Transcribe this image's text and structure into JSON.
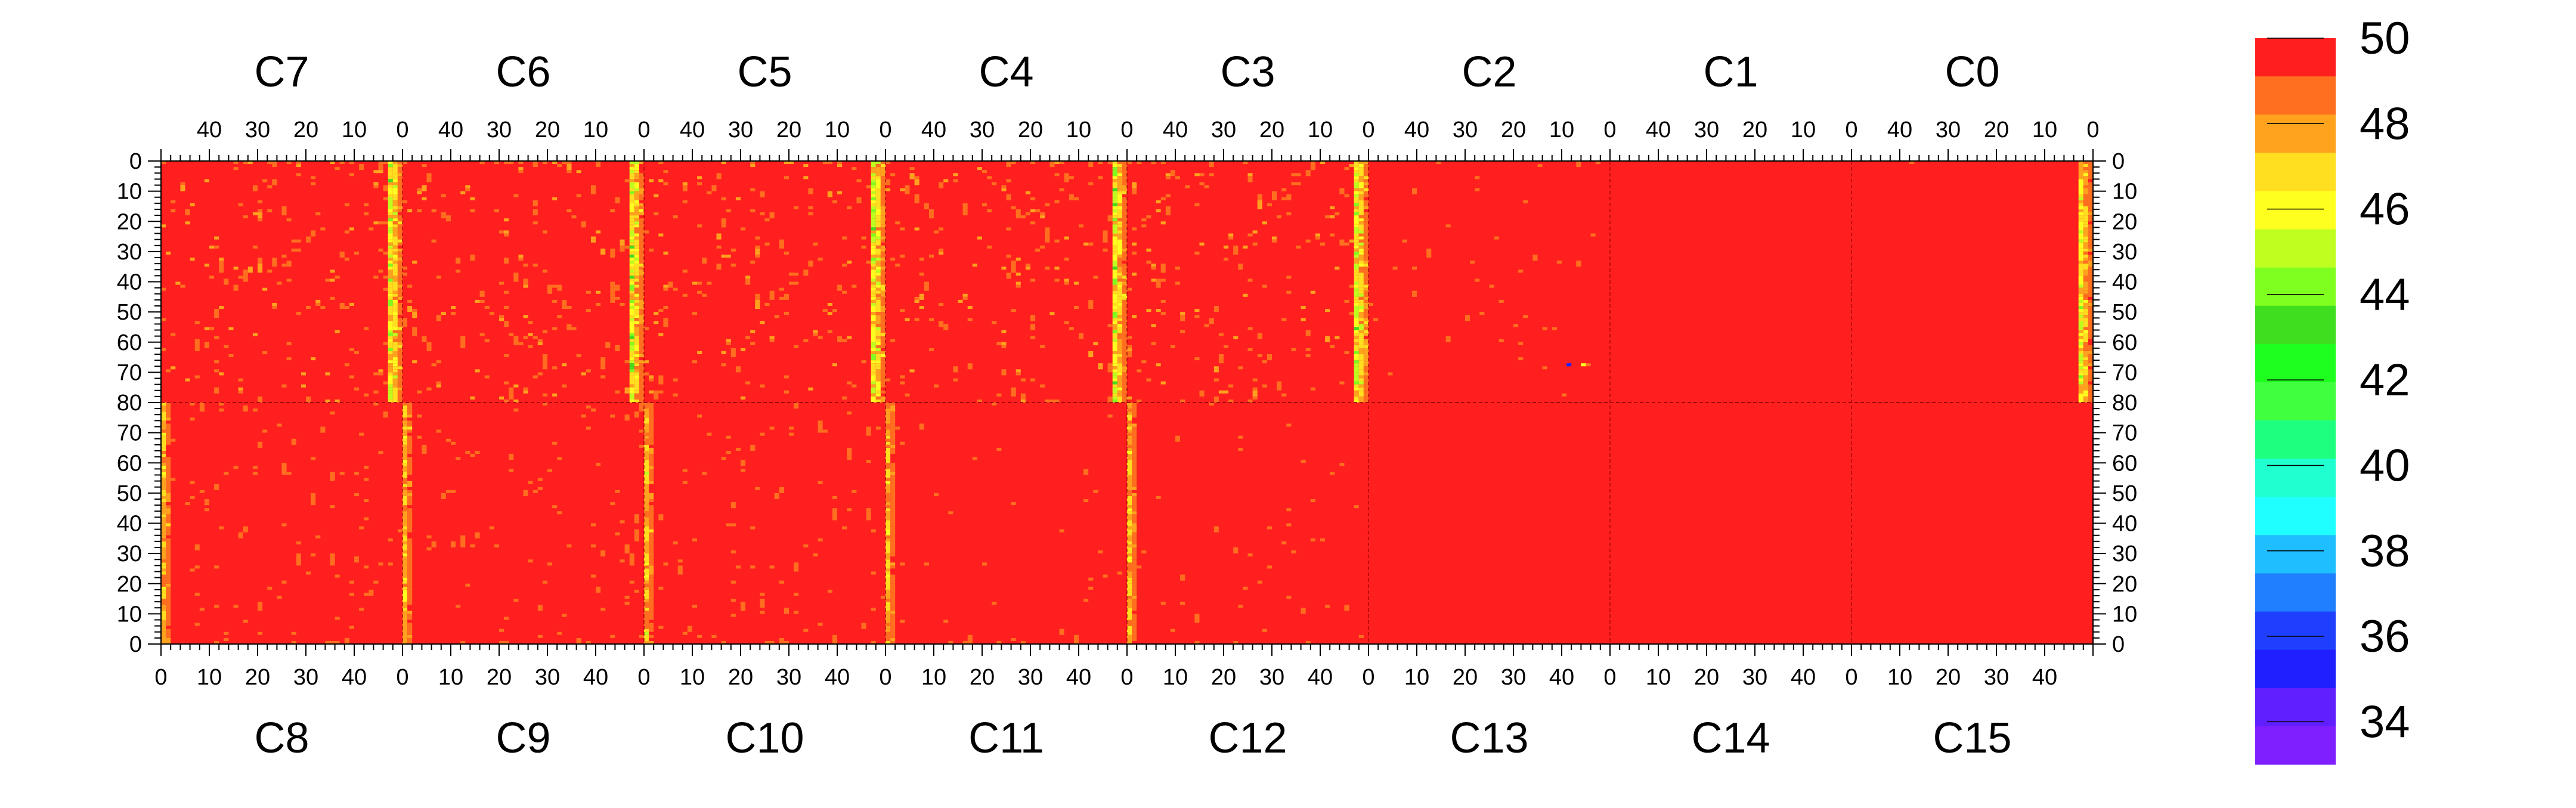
{
  "chart_data": {
    "type": "heatmap",
    "title": "",
    "colorbar": {
      "min": 33,
      "max": 50,
      "ticks": [
        50,
        48,
        46,
        44,
        42,
        40,
        38,
        36,
        34
      ],
      "tick_labels": [
        "50",
        "48",
        "46",
        "44",
        "42",
        "40",
        "38",
        "36",
        "34"
      ],
      "colors": [
        "#7f1fff",
        "#5f1fff",
        "#1f1fff",
        "#1f3fff",
        "#1f7fff",
        "#1fbfff",
        "#1fffff",
        "#1fffcf",
        "#1fff7f",
        "#3fff3f",
        "#1fff1f",
        "#3fdf1f",
        "#7fff1f",
        "#bfff1f",
        "#ffff1f",
        "#ffdf1f",
        "#ffa31f",
        "#ff6f1f",
        "#ff1f1f"
      ]
    },
    "panels_top": [
      {
        "label": "C7",
        "mean_by_column": 49.3,
        "hot_edge": "right"
      },
      {
        "label": "C6",
        "mean_by_column": 49.3,
        "hot_edge": "right"
      },
      {
        "label": "C5",
        "mean_by_column": 49.3,
        "hot_edge": "right"
      },
      {
        "label": "C4",
        "mean_by_column": 49.3,
        "hot_edge": "right"
      },
      {
        "label": "C3",
        "mean_by_column": 49.3,
        "hot_edge": "right"
      },
      {
        "label": "C2",
        "mean_by_column": 49.6,
        "hot_edge": "none"
      },
      {
        "label": "C1",
        "mean_by_column": 49.9,
        "hot_edge": "none"
      },
      {
        "label": "C0",
        "mean_by_column": 49.7,
        "hot_edge": "right"
      }
    ],
    "panels_bottom": [
      {
        "label": "C8",
        "mean_by_column": 49.5,
        "hot_edge": "right"
      },
      {
        "label": "C9",
        "mean_by_column": 49.5,
        "hot_edge": "right"
      },
      {
        "label": "C10",
        "mean_by_column": 49.5,
        "hot_edge": "right"
      },
      {
        "label": "C11",
        "mean_by_column": 49.6,
        "hot_edge": "right"
      },
      {
        "label": "C12",
        "mean_by_column": 49.6,
        "hot_edge": "right"
      },
      {
        "label": "C13",
        "mean_by_column": 49.9,
        "hot_edge": "none"
      },
      {
        "label": "C14",
        "mean_by_column": 49.95,
        "hot_edge": "none"
      },
      {
        "label": "C15",
        "mean_by_column": 49.9,
        "hot_edge": "none"
      }
    ],
    "x_ticks_top": [
      "40",
      "30",
      "20",
      "10",
      "0"
    ],
    "x_ticks_bottom": [
      "0",
      "10",
      "20",
      "30",
      "40"
    ],
    "y_ticks_top": [
      "0",
      "10",
      "20",
      "30",
      "40",
      "50",
      "60",
      "70",
      "80"
    ],
    "y_ticks_bottom": [
      "70",
      "60",
      "50",
      "40",
      "30",
      "20",
      "10",
      "0"
    ],
    "x_range_per_panel": [
      0,
      50
    ],
    "y_range_per_half": [
      0,
      80
    ],
    "outliers": [
      {
        "panel": "C2",
        "x": 8,
        "y": 67,
        "value": 35
      },
      {
        "panel": "C2",
        "x": 5,
        "y": 67,
        "value": 46
      }
    ],
    "grid": false
  }
}
